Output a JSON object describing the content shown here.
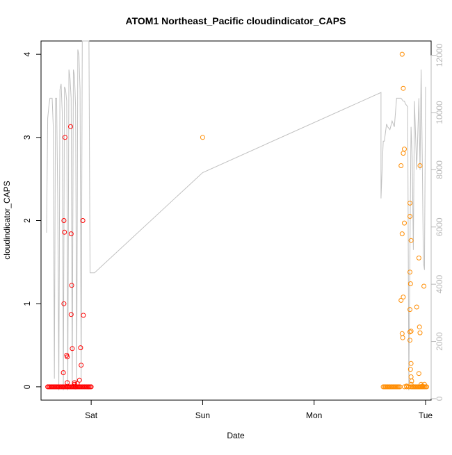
{
  "chart_data": {
    "type": "scatter",
    "title": "ATOM1 Northeast_Pacific cloudindicator_CAPS",
    "xlabel": "Date",
    "ylabel": "cloudindicator_CAPS",
    "x_ticks": [
      "Sat",
      "Sun",
      "Mon",
      "Tue"
    ],
    "x_range_days": [
      -0.45,
      3.05
    ],
    "y_ticks": [
      "0",
      "1",
      "2",
      "3",
      "4"
    ],
    "ylim": [
      -0.16,
      4.16
    ],
    "y2_ticks": [
      "0",
      "2000",
      "4000",
      "6000",
      "8000",
      "10000",
      "12000"
    ],
    "y2lim": [
      -50,
      12500
    ],
    "grid": false,
    "colors": {
      "group1": "#ff0000",
      "group2": "#ff8c00",
      "line": "#c0c0c0"
    },
    "series": [
      {
        "color": "#ff0000",
        "points": [
          [
            -0.39,
            0
          ],
          [
            -0.38,
            0
          ],
          [
            -0.37,
            0
          ],
          [
            -0.36,
            0
          ],
          [
            -0.35,
            0
          ],
          [
            -0.34,
            0
          ],
          [
            -0.33,
            0
          ],
          [
            -0.32,
            0
          ],
          [
            -0.31,
            0
          ],
          [
            -0.3,
            0
          ],
          [
            -0.29,
            0
          ],
          [
            -0.28,
            0
          ],
          [
            -0.27,
            0
          ],
          [
            -0.26,
            0
          ],
          [
            -0.25,
            0
          ],
          [
            -0.24,
            0
          ],
          [
            -0.23,
            0
          ],
          [
            -0.22,
            0
          ],
          [
            -0.21,
            0
          ],
          [
            -0.2,
            0
          ],
          [
            -0.19,
            0
          ],
          [
            -0.18,
            0
          ],
          [
            -0.17,
            0
          ],
          [
            -0.16,
            0
          ],
          [
            -0.15,
            0
          ],
          [
            -0.14,
            0
          ],
          [
            -0.13,
            0
          ],
          [
            -0.12,
            0
          ],
          [
            -0.11,
            0
          ],
          [
            -0.1,
            0
          ],
          [
            -0.09,
            0
          ],
          [
            -0.08,
            0
          ],
          [
            -0.07,
            0
          ],
          [
            -0.06,
            0
          ],
          [
            -0.05,
            0
          ],
          [
            -0.04,
            0
          ],
          [
            -0.03,
            0
          ],
          [
            -0.02,
            0
          ],
          [
            -0.01,
            0
          ],
          [
            0.0,
            0
          ],
          [
            -0.235,
            3.0
          ],
          [
            -0.245,
            2.0
          ],
          [
            -0.24,
            1.86
          ],
          [
            -0.245,
            1.0
          ],
          [
            -0.25,
            0.17
          ],
          [
            -0.22,
            0.38
          ],
          [
            -0.215,
            0.36
          ],
          [
            -0.215,
            0.05
          ],
          [
            -0.185,
            3.13
          ],
          [
            -0.18,
            1.84
          ],
          [
            -0.175,
            1.22
          ],
          [
            -0.18,
            0.87
          ],
          [
            -0.17,
            0.46
          ],
          [
            -0.15,
            0.05
          ],
          [
            -0.14,
            0.0
          ],
          [
            -0.105,
            0.08
          ],
          [
            -0.095,
            0.47
          ],
          [
            -0.09,
            0.26
          ],
          [
            -0.075,
            2.0
          ],
          [
            -0.07,
            0.86
          ],
          [
            -0.15,
            0.03
          ],
          [
            -0.125,
            0.04
          ]
        ]
      },
      {
        "color": "#ff8c00",
        "points": [
          [
            1.0,
            3.0
          ],
          [
            2.62,
            0
          ],
          [
            2.63,
            0
          ],
          [
            2.64,
            0
          ],
          [
            2.65,
            0
          ],
          [
            2.66,
            0
          ],
          [
            2.67,
            0
          ],
          [
            2.68,
            0
          ],
          [
            2.69,
            0
          ],
          [
            2.7,
            0
          ],
          [
            2.71,
            0
          ],
          [
            2.72,
            0
          ],
          [
            2.73,
            0
          ],
          [
            2.74,
            0
          ],
          [
            2.75,
            0
          ],
          [
            2.76,
            0
          ],
          [
            2.77,
            0
          ],
          [
            2.81,
            0
          ],
          [
            2.83,
            0
          ],
          [
            2.85,
            0
          ],
          [
            2.87,
            0
          ],
          [
            2.88,
            0
          ],
          [
            2.89,
            0
          ],
          [
            2.9,
            0
          ],
          [
            2.91,
            0
          ],
          [
            2.92,
            0
          ],
          [
            2.93,
            0
          ],
          [
            2.94,
            0
          ],
          [
            2.95,
            0
          ],
          [
            2.96,
            0
          ],
          [
            2.97,
            0
          ],
          [
            2.98,
            0
          ],
          [
            2.99,
            0
          ],
          [
            3.0,
            0
          ],
          [
            3.01,
            0
          ],
          [
            2.79,
            4.0
          ],
          [
            2.8,
            3.59
          ],
          [
            2.81,
            2.86
          ],
          [
            2.8,
            2.81
          ],
          [
            2.78,
            2.66
          ],
          [
            2.81,
            1.97
          ],
          [
            2.79,
            1.84
          ],
          [
            2.8,
            1.08
          ],
          [
            2.78,
            1.04
          ],
          [
            2.79,
            0.64
          ],
          [
            2.795,
            0.59
          ],
          [
            2.86,
            2.21
          ],
          [
            2.86,
            2.05
          ],
          [
            2.87,
            1.76
          ],
          [
            2.86,
            1.38
          ],
          [
            2.865,
            1.24
          ],
          [
            2.86,
            0.93
          ],
          [
            2.87,
            0.67
          ],
          [
            2.86,
            0.66
          ],
          [
            2.86,
            0.56
          ],
          [
            2.87,
            0.28
          ],
          [
            2.865,
            0.21
          ],
          [
            2.87,
            0.12
          ],
          [
            2.875,
            0.07
          ],
          [
            2.87,
            0.03
          ],
          [
            2.83,
            0.01
          ],
          [
            2.95,
            2.66
          ],
          [
            2.94,
            1.55
          ],
          [
            2.92,
            0.96
          ],
          [
            2.945,
            0.72
          ],
          [
            2.95,
            0.65
          ],
          [
            2.94,
            0.16
          ],
          [
            2.96,
            0.03
          ],
          [
            2.985,
            1.21
          ],
          [
            2.99,
            0.03
          ],
          [
            2.97,
            0.01
          ]
        ]
      }
    ],
    "line_series": {
      "color": "#c0c0c0",
      "axis": "right",
      "x": [
        -0.4,
        -0.39,
        -0.38,
        -0.37,
        -0.36,
        -0.35,
        -0.34,
        -0.33,
        -0.32,
        -0.31,
        -0.3,
        -0.29,
        -0.28,
        -0.27,
        -0.26,
        -0.25,
        -0.24,
        -0.23,
        -0.22,
        -0.21,
        -0.2,
        -0.19,
        -0.18,
        -0.17,
        -0.16,
        -0.15,
        -0.14,
        -0.13,
        -0.12,
        -0.11,
        -0.1,
        -0.09,
        -0.08,
        -0.07,
        -0.06,
        -0.05,
        -0.04,
        -0.03,
        -0.02,
        -0.01,
        0.0,
        0.03,
        1.0,
        2.6,
        2.6,
        2.62,
        2.63,
        2.65,
        2.66,
        2.68,
        2.7,
        2.72,
        2.74,
        2.76,
        2.78,
        2.8,
        2.81,
        2.82,
        2.84,
        2.85,
        2.86,
        2.87,
        2.88,
        2.89,
        2.9,
        2.92,
        2.94,
        2.95,
        2.96,
        2.97,
        2.98,
        2.99,
        3.0
      ],
      "y": [
        5800,
        9800,
        10200,
        10500,
        10500,
        10500,
        9500,
        700,
        10500,
        10500,
        7000,
        300,
        10800,
        11000,
        10000,
        300,
        10900,
        10800,
        10400,
        300,
        11500,
        11200,
        10500,
        400,
        11500,
        11300,
        10200,
        500,
        12200,
        12000,
        10800,
        600,
        12800,
        12800,
        12800,
        12800,
        12800,
        12800,
        12800,
        4400,
        4400,
        4400,
        7900,
        10700,
        7000,
        9000,
        9000,
        9600,
        9500,
        9400,
        9700,
        9500,
        10500,
        10500,
        10500,
        10400,
        10400,
        10300,
        10200,
        300,
        5100,
        9500,
        8400,
        5200,
        10400,
        8000,
        10500,
        8000,
        11500,
        8500,
        4800,
        4500,
        10900
      ]
    }
  }
}
